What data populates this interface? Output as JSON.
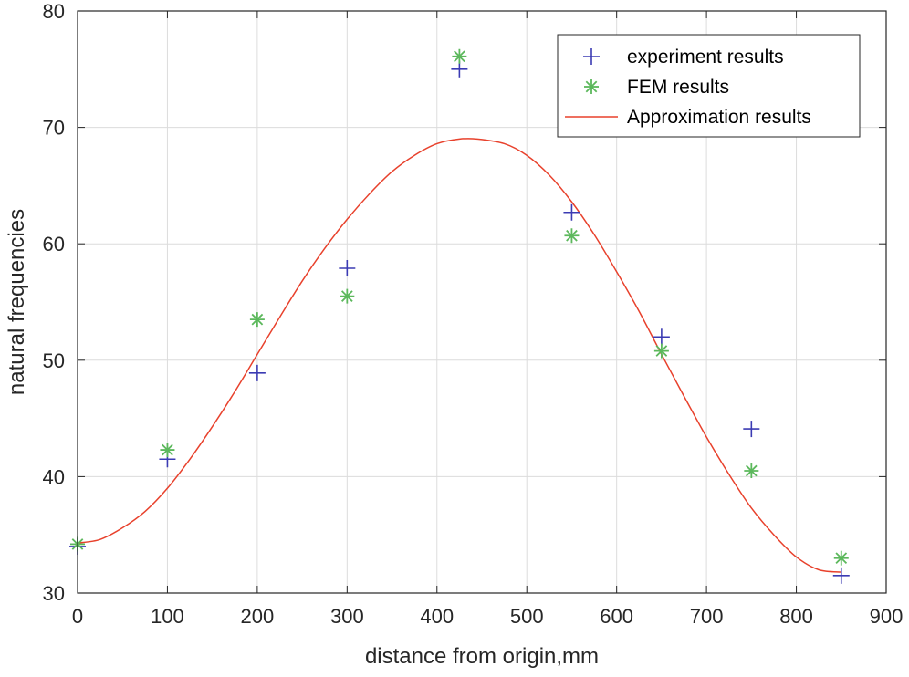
{
  "chart_data": {
    "type": "scatter",
    "title": "",
    "xlabel": "distance from origin,mm",
    "ylabel": "natural frequencies",
    "xlim": [
      0,
      900
    ],
    "ylim": [
      30,
      80
    ],
    "xticks": [
      0,
      100,
      200,
      300,
      400,
      500,
      600,
      700,
      800,
      900
    ],
    "yticks": [
      30,
      40,
      50,
      60,
      70,
      80
    ],
    "grid": true,
    "legend_position": "top-right",
    "series": [
      {
        "name": "experiment results",
        "marker": "plus",
        "color": "#3b3bb3",
        "x": [
          0,
          100,
          200,
          300,
          425,
          550,
          650,
          750,
          850
        ],
        "y": [
          34.0,
          41.5,
          48.9,
          57.9,
          75.0,
          62.7,
          52.0,
          44.1,
          31.5
        ]
      },
      {
        "name": "FEM results",
        "marker": "asterisk",
        "color": "#5cb85c",
        "x": [
          0,
          100,
          200,
          300,
          425,
          550,
          650,
          750,
          850
        ],
        "y": [
          34.2,
          42.3,
          53.5,
          55.5,
          76.1,
          60.7,
          50.8,
          40.5,
          33.0
        ]
      },
      {
        "name": "Approximation results",
        "marker": "line",
        "color": "#e8412c",
        "x": [
          0,
          25,
          50,
          75,
          100,
          125,
          150,
          175,
          200,
          225,
          250,
          275,
          300,
          325,
          350,
          375,
          400,
          425,
          445,
          475,
          500,
          525,
          550,
          575,
          600,
          625,
          650,
          675,
          700,
          725,
          750,
          775,
          800,
          825,
          850
        ],
        "y": [
          34.3,
          34.6,
          35.6,
          37.0,
          39.0,
          41.5,
          44.3,
          47.3,
          50.5,
          53.7,
          56.8,
          59.6,
          62.1,
          64.3,
          66.2,
          67.6,
          68.6,
          69.0,
          69.0,
          68.6,
          67.6,
          65.9,
          63.6,
          60.8,
          57.6,
          54.2,
          50.5,
          46.9,
          43.4,
          40.2,
          37.3,
          35.0,
          33.1,
          32.0,
          31.8
        ]
      }
    ]
  }
}
